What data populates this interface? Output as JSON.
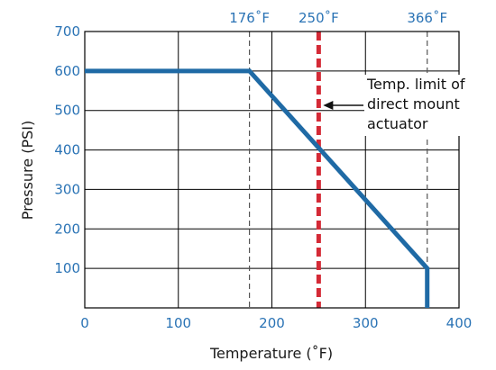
{
  "chart_data": {
    "type": "line",
    "xlabel": "Temperature (˚F)",
    "ylabel": "Pressure (PSI)",
    "xlim": [
      0,
      400
    ],
    "ylim": [
      0,
      700
    ],
    "x_ticks": [
      "0",
      "100",
      "200",
      "300",
      "400"
    ],
    "y_ticks": [
      "100",
      "200",
      "300",
      "400",
      "500",
      "600",
      "700"
    ],
    "grid": true,
    "series": [
      {
        "x": [
          0,
          176,
          366,
          366
        ],
        "y": [
          600,
          600,
          100,
          0
        ],
        "color": "#1f6aa5"
      }
    ],
    "reference_lines": [
      {
        "x": 176,
        "label": "176˚F",
        "style": "dashed",
        "color": "#555555"
      },
      {
        "x": 250,
        "label": "250˚F",
        "style": "dashed",
        "color": "#d42a36"
      },
      {
        "x": 366,
        "label": "366˚F",
        "style": "dashed",
        "color": "#555555"
      }
    ],
    "annotation": {
      "lines": [
        "Temp. limit of",
        "direct mount",
        "actuator"
      ],
      "points_to_x": 250
    }
  }
}
